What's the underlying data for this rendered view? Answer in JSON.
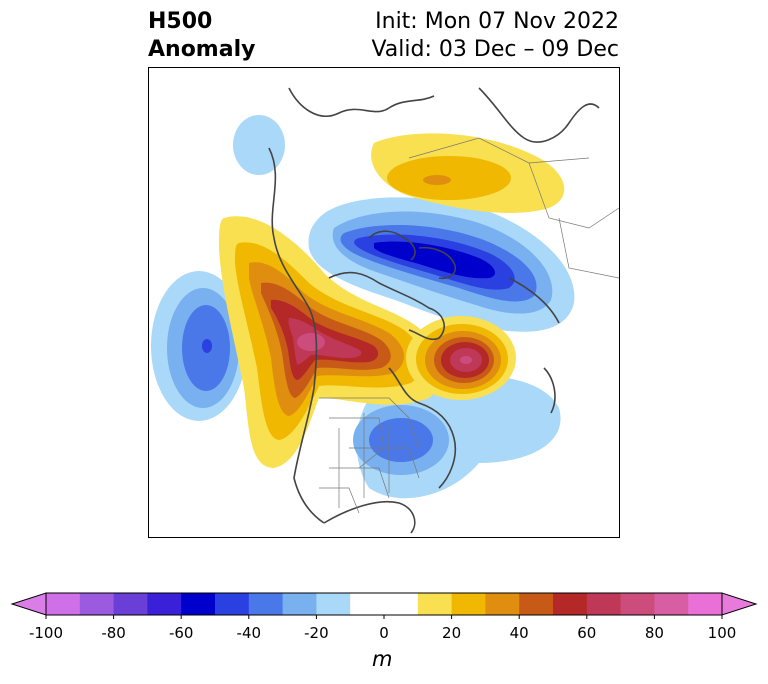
{
  "title": {
    "left_line1": "H500",
    "left_line2": "Anomaly",
    "right_line1": "Init: Mon 07 Nov 2022",
    "right_line2": "Valid: 03 Dec – 09 Dec"
  },
  "colorbar": {
    "unit": "m",
    "tick_labels": [
      "-100",
      "-80",
      "-60",
      "-40",
      "-20",
      "0",
      "20",
      "40",
      "60",
      "80",
      "100"
    ],
    "min": -100,
    "max": 100,
    "step": 10,
    "under_color": "#d97ee6",
    "over_color": "#e87adb",
    "colors": [
      "#d070e8",
      "#9c5ae0",
      "#6a3fd8",
      "#3a20d8",
      "#0000cc",
      "#2a40e0",
      "#4a78e8",
      "#78b0f0",
      "#aad8f8",
      "#ffffff",
      "#ffffff",
      "#f8e050",
      "#f0b800",
      "#e08e10",
      "#c85a18",
      "#b42828",
      "#c03858",
      "#cc4c7c",
      "#d85ea4",
      "#e870d6"
    ]
  },
  "map": {
    "projection": "north-polar-stereographic",
    "field": "500 hPa geopotential height anomaly"
  }
}
